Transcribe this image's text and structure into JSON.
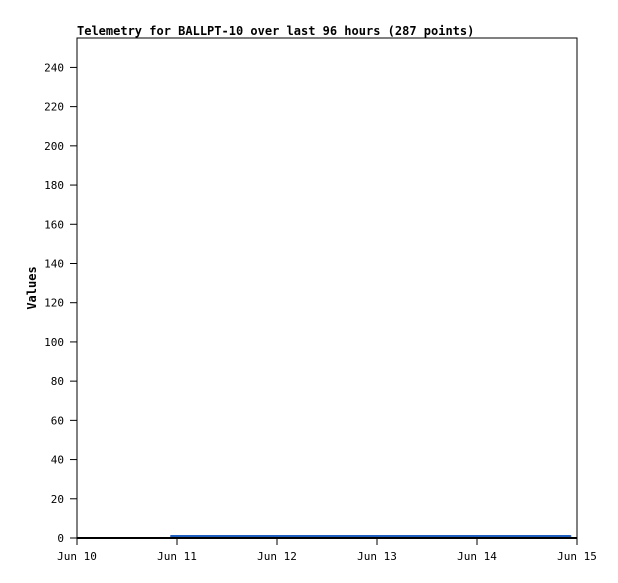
{
  "chart_data": {
    "type": "line",
    "title": "Telemetry for BALLPT-10 over last 96 hours (287 points)",
    "xlabel": "",
    "ylabel": "Values",
    "ylim": [
      0,
      255
    ],
    "yticks": [
      0,
      20,
      40,
      60,
      80,
      100,
      120,
      140,
      160,
      180,
      200,
      220,
      240
    ],
    "xlim": [
      "Jun 10 00:00",
      "Jun 15 00:00"
    ],
    "xticks": [
      "Jun 10",
      "Jun 11",
      "Jun 12",
      "Jun 13",
      "Jun 14",
      "Jun 15"
    ],
    "grid": false,
    "series": [
      {
        "color": "#1f5fbf",
        "x": [
          "Jun 10 22:30",
          "Jun 14 22:30"
        ],
        "y": [
          1,
          1
        ]
      }
    ]
  }
}
